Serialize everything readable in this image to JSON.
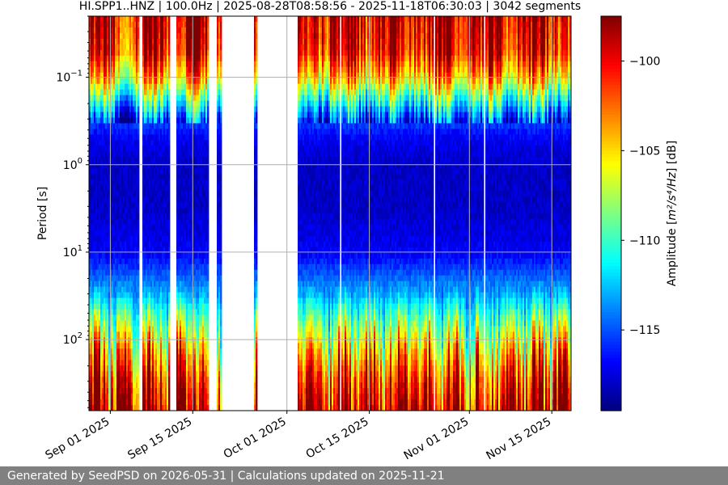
{
  "chart_data": {
    "type": "heatmap",
    "title": "HI.SPP1..HNZ | 100.0Hz | 2025-08-28T08:58:56 - 2025-11-18T06:30:03 | 3042 segments",
    "xlabel": "",
    "ylabel": "Period [s]",
    "x_axis": {
      "type": "date",
      "range": [
        "2025-08-28T08:58:56",
        "2025-11-18T06:30:03"
      ],
      "ticks": [
        "2025-09-01",
        "2025-09-15",
        "2025-10-01",
        "2025-10-15",
        "2025-11-01",
        "2025-11-15"
      ],
      "tick_labels": [
        "Sep 01 2025",
        "Sep 15 2025",
        "Oct 01 2025",
        "Oct 15 2025",
        "Nov 01 2025",
        "Nov 15 2025"
      ]
    },
    "y_axis": {
      "scale": "log",
      "inverted": true,
      "range": [
        0.02,
        650
      ],
      "ticks": [
        0.1,
        1,
        10,
        100
      ],
      "tick_labels": [
        {
          "base": "10",
          "exp": "−1"
        },
        {
          "base": "10",
          "exp": "0"
        },
        {
          "base": "10",
          "exp": "1"
        },
        {
          "base": "10",
          "exp": "2"
        }
      ]
    },
    "colorbar": {
      "label_prefix": "Amplitude [",
      "label_math": "m²/s⁴/Hz",
      "label_suffix": "] [dB]",
      "colormap": "jet",
      "range": [
        -119.5,
        -97.5
      ],
      "ticks": [
        -100,
        -105,
        -110,
        -115
      ],
      "tick_labels": [
        "−100",
        "−105",
        "−110",
        "−115"
      ]
    },
    "data_gaps": [
      [
        "2025-09-06T00:00:00",
        "2025-09-06T08:00:00"
      ],
      [
        "2025-09-11T06:00:00",
        "2025-09-12T04:00:00"
      ],
      [
        "2025-09-17T20:00:00",
        "2025-09-19T04:00:00"
      ],
      [
        "2025-09-19T19:00:00",
        "2025-09-25T08:00:00"
      ],
      [
        "2025-09-26T02:00:00",
        "2025-10-02T20:00:00"
      ],
      [
        "2025-10-08T00:00:00",
        "2025-10-08T04:00:00"
      ],
      [
        "2025-10-10T00:00:00",
        "2025-10-10T03:00:00"
      ],
      [
        "2025-10-19T12:00:00",
        "2025-10-19T15:00:00"
      ],
      [
        "2025-10-26T00:00:00",
        "2025-10-26T04:00:00"
      ],
      [
        "2025-11-03T12:00:00",
        "2025-11-03T15:00:00"
      ]
    ],
    "spectral_profile": [
      {
        "period": 0.02,
        "db": -99
      },
      {
        "period": 0.05,
        "db": -100
      },
      {
        "period": 0.1,
        "db": -104
      },
      {
        "period": 0.2,
        "db": -111
      },
      {
        "period": 0.3,
        "db": -115
      },
      {
        "period": 0.5,
        "db": -117
      },
      {
        "period": 1,
        "db": -118
      },
      {
        "period": 3,
        "db": -118
      },
      {
        "period": 10,
        "db": -117
      },
      {
        "period": 30,
        "db": -113
      },
      {
        "period": 70,
        "db": -108
      },
      {
        "period": 150,
        "db": -104
      },
      {
        "period": 300,
        "db": -101
      },
      {
        "period": 650,
        "db": -99
      }
    ],
    "grid": true
  },
  "footer": {
    "text": "Generated by SeedPSD on 2026-05-31 | Calculations updated on 2025-11-21"
  }
}
